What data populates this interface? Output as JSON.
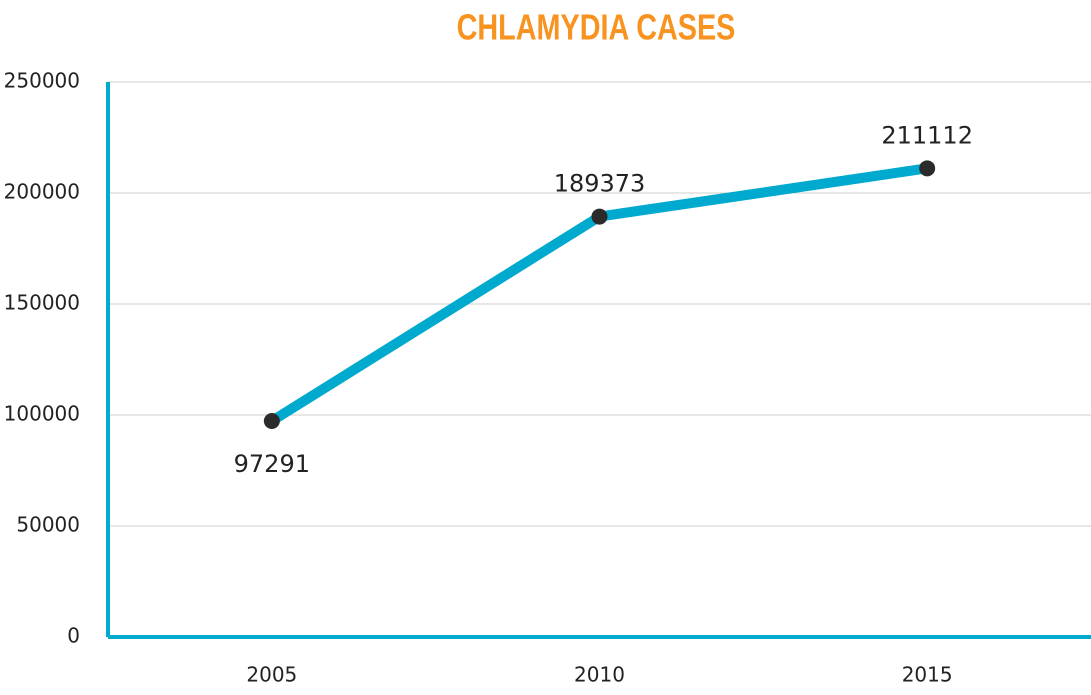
{
  "chart_data": {
    "type": "line",
    "title": "CHLAMYDIA CASES",
    "categories": [
      "2005",
      "2010",
      "2015"
    ],
    "values": [
      97291,
      189373,
      211112
    ],
    "color": "#00a9ce",
    "marker_color": "#2b2b2b",
    "ylim": [
      0,
      250000
    ],
    "yticks": [
      0,
      50000,
      100000,
      150000,
      200000,
      250000
    ],
    "grid": true
  }
}
